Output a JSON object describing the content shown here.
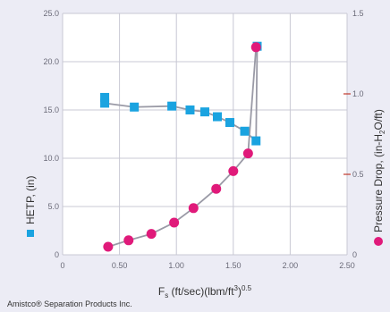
{
  "chart_data": {
    "type": "scatter",
    "xlabel": "F",
    "xlabel_sub": "s",
    "xlabel_rest": " (ft/sec)(lbm/ft",
    "xlabel_sup1": "3",
    "xlabel_rest2": ")",
    "xlabel_sup2": "0.5",
    "ylabel_left": "HETP, (in)",
    "ylabel_right": "Pressure Drop, (in-H",
    "ylabel_right_sub": "2",
    "ylabel_right_rest": "O/ft)",
    "xlim": [
      0,
      2.5
    ],
    "ylim_left": [
      0,
      25
    ],
    "ylim_right": [
      0,
      1.5
    ],
    "x_ticks": [
      "0",
      "0.50",
      "1.00",
      "1.50",
      "2.00",
      "2.50"
    ],
    "x_tick_values": [
      0,
      0.5,
      1.0,
      1.5,
      2.0,
      2.5
    ],
    "y_left_ticks": [
      "0",
      "5.0",
      "10.0",
      "15.0",
      "20.0",
      "25.0"
    ],
    "y_left_tick_values": [
      0,
      5,
      10,
      15,
      20,
      25
    ],
    "y_right_ticks": [
      "0",
      "0.5",
      "1.0",
      "1.5"
    ],
    "y_right_tick_values": [
      0,
      0.5,
      1.0,
      1.5
    ],
    "grid": true,
    "series": [
      {
        "axis": "left",
        "marker": "square",
        "color": "#1aa3e0",
        "points": [
          [
            0.37,
            16.3
          ],
          [
            0.37,
            15.7
          ],
          [
            0.63,
            15.3
          ],
          [
            0.96,
            15.4
          ],
          [
            1.12,
            15.0
          ],
          [
            1.25,
            14.8
          ],
          [
            1.36,
            14.3
          ],
          [
            1.47,
            13.7
          ],
          [
            1.6,
            12.8
          ],
          [
            1.7,
            11.8
          ],
          [
            1.71,
            21.6
          ]
        ]
      },
      {
        "axis": "right",
        "marker": "circle",
        "color": "#e01a7a",
        "points": [
          [
            0.4,
            0.05
          ],
          [
            0.58,
            0.09
          ],
          [
            0.78,
            0.13
          ],
          [
            0.98,
            0.2
          ],
          [
            1.15,
            0.29
          ],
          [
            1.35,
            0.41
          ],
          [
            1.5,
            0.52
          ],
          [
            1.63,
            0.63
          ],
          [
            1.7,
            1.29
          ]
        ]
      }
    ],
    "credit": "Amistco® Separation Products Inc."
  }
}
